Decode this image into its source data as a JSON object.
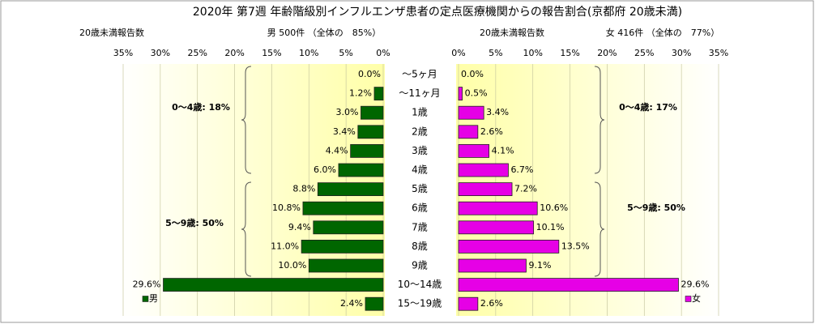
{
  "chart_data": {
    "type": "butterfly_bar",
    "title": "2020年 第7週 年齢階級別インフルエンザ患者の定点医療機関からの報告割合(京都府 20歳未満)",
    "left_heading": {
      "label": "20歳未満報告数",
      "text": "男 500件 （全体の　85%）"
    },
    "right_heading": {
      "label": "20歳未満報告数",
      "text": "女 416件 （全体の　77%）"
    },
    "categories": [
      "～5ヶ月",
      "～11ヶ月",
      "1歳",
      "2歳",
      "3歳",
      "4歳",
      "5歳",
      "6歳",
      "7歳",
      "8歳",
      "9歳",
      "10～14歳",
      "15～19歳"
    ],
    "series": [
      {
        "name": "男",
        "color": "#006600",
        "side": "left",
        "values": [
          0.0,
          1.2,
          3.0,
          3.4,
          4.4,
          6.0,
          8.8,
          10.8,
          9.4,
          11.0,
          10.0,
          29.6,
          2.4
        ],
        "value_labels": [
          "0.0%",
          "1.2%",
          "3.0%",
          "3.4%",
          "4.4%",
          "6.0%",
          "8.8%",
          "10.8%",
          "9.4%",
          "11.0%",
          "10.0%",
          "29.6%",
          "2.4%"
        ]
      },
      {
        "name": "女",
        "color": "#e600e6",
        "side": "right",
        "values": [
          0.0,
          0.5,
          3.4,
          2.6,
          4.1,
          6.7,
          7.2,
          10.6,
          10.1,
          13.5,
          9.1,
          29.6,
          2.6
        ],
        "value_labels": [
          "0.0%",
          "0.5%",
          "3.4%",
          "2.6%",
          "4.1%",
          "6.7%",
          "7.2%",
          "10.6%",
          "10.1%",
          "13.5%",
          "9.1%",
          "29.6%",
          "2.6%"
        ]
      }
    ],
    "annotations": [
      "0～4歳: 18%",
      "5～9歳: 50%",
      "0～4歳: 17%",
      "5～9歳: 50%"
    ],
    "xlim": [
      0,
      35
    ],
    "xticks": [
      {
        "value": 0,
        "label": "0%"
      },
      {
        "value": 5,
        "label": "5%"
      },
      {
        "value": 10,
        "label": "10%"
      },
      {
        "value": 15,
        "label": "15%"
      },
      {
        "value": 20,
        "label": "20%"
      },
      {
        "value": 25,
        "label": "25%"
      },
      {
        "value": 30,
        "label": "30%"
      },
      {
        "value": 35,
        "label": "35%"
      }
    ],
    "grid": true
  }
}
